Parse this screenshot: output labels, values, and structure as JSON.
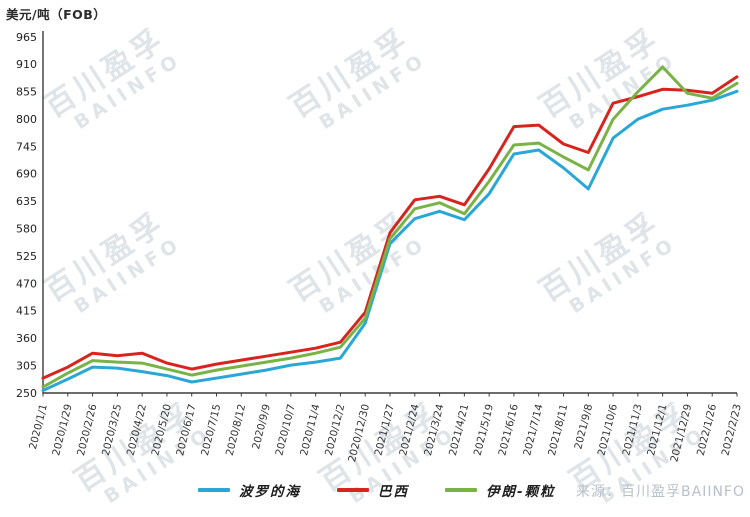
{
  "title": "美元/吨（FOB）",
  "watermark": {
    "cn": "百川盈孚",
    "en": "BAIINFO"
  },
  "source_note": "来源：百川盈孚BAIINFO",
  "chart_data": {
    "type": "line",
    "title": "美元/吨（FOB）",
    "ylabel": "美元/吨（FOB）",
    "ylim": [
      250,
      965
    ],
    "ytick_step": 55,
    "yticks": [
      965,
      910,
      855,
      800,
      745,
      690,
      635,
      580,
      525,
      470,
      415,
      360,
      305,
      250
    ],
    "grid": false,
    "legend_position": "bottom",
    "categories": [
      "2020/1/1",
      "2020/1/29",
      "2020/2/26",
      "2020/3/25",
      "2020/4/22",
      "2020/5/20",
      "2020/6/17",
      "2020/7/15",
      "2020/8/12",
      "2020/9/9",
      "2020/10/7",
      "2020/11/4",
      "2020/12/2",
      "2020/12/30",
      "2021/1/27",
      "2021/2/24",
      "2021/3/24",
      "2021/4/21",
      "2021/5/19",
      "2021/6/16",
      "2021/7/14",
      "2021/8/11",
      "2021/9/8",
      "2021/10/6",
      "2021/11/3",
      "2021/12/1",
      "2021/12/29",
      "2022/1/26",
      "2022/2/23"
    ],
    "series": [
      {
        "name": "波罗的海",
        "color": "#2aa7d6",
        "values": [
          255,
          278,
          302,
          300,
          293,
          285,
          272,
          280,
          288,
          296,
          306,
          312,
          320,
          390,
          550,
          600,
          615,
          598,
          650,
          730,
          738,
          702,
          660,
          762,
          800,
          820,
          828,
          838,
          856
        ]
      },
      {
        "name": "巴西",
        "color": "#d8241e",
        "values": [
          280,
          302,
          330,
          325,
          330,
          310,
          298,
          308,
          316,
          324,
          332,
          340,
          352,
          412,
          572,
          638,
          645,
          628,
          700,
          785,
          788,
          750,
          733,
          832,
          845,
          860,
          858,
          852,
          885
        ]
      },
      {
        "name": "伊朗-颗粒",
        "color": "#79b345",
        "values": [
          262,
          290,
          315,
          312,
          310,
          298,
          286,
          296,
          304,
          312,
          320,
          330,
          342,
          400,
          560,
          620,
          632,
          610,
          675,
          748,
          752,
          724,
          698,
          800,
          855,
          905,
          852,
          842,
          872
        ]
      }
    ]
  }
}
